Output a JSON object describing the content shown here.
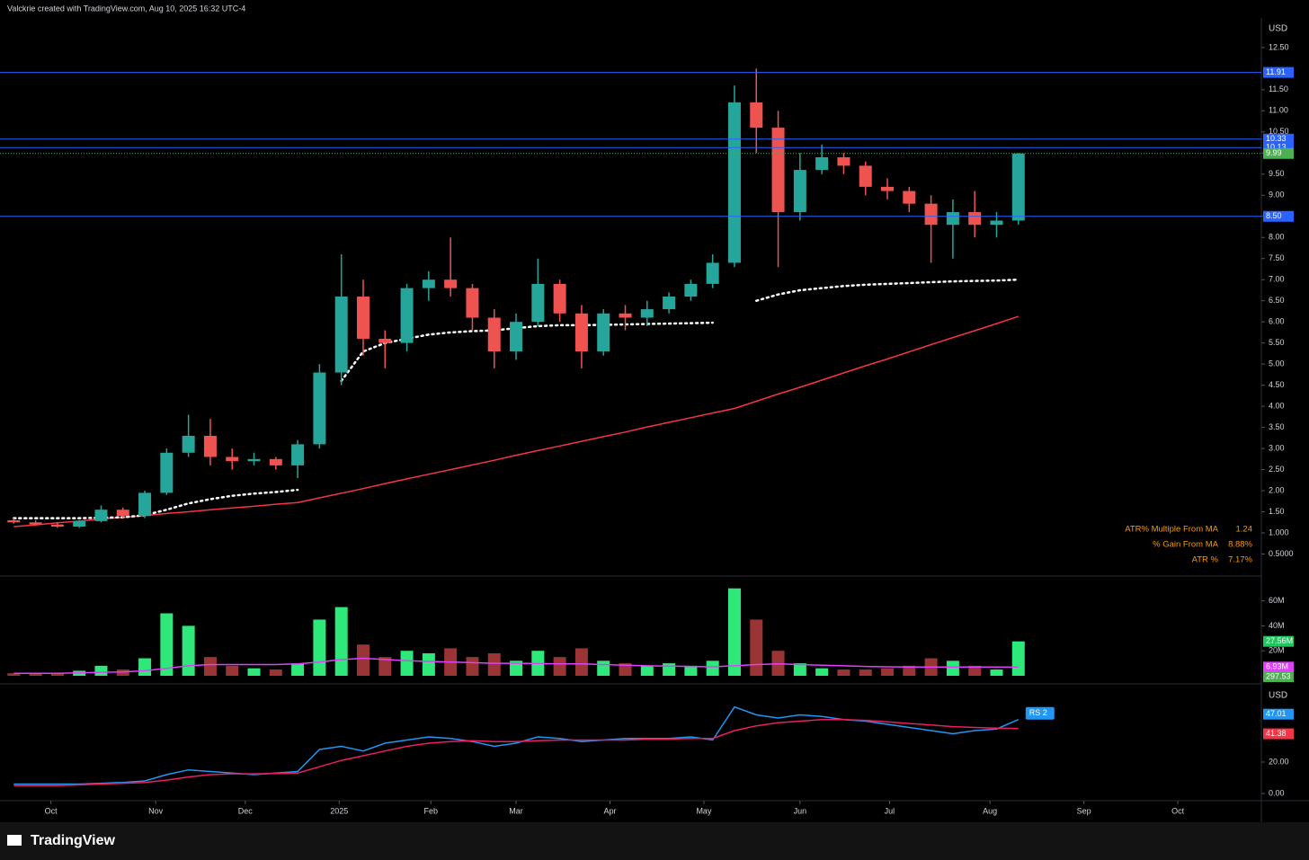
{
  "header": "Valckrie created with TradingView.com, Aug 10, 2025 16:32 UTC-4",
  "logo": "TradingView",
  "stats": [
    [
      "ATR% Multiple From MA",
      "1.24"
    ],
    [
      "% Gain From MA",
      "8.88%"
    ],
    [
      "ATR %",
      "7.17%"
    ]
  ],
  "chart_data": [
    {
      "type": "candlestick",
      "currency": "USD",
      "up_color": "#26a69a",
      "down_color": "#ef5350",
      "ylim": [
        0,
        13.2
      ],
      "yticks": [
        {
          "value": 0.5,
          "label": "0.5000"
        },
        {
          "value": 1,
          "label": "1.000"
        },
        {
          "value": 1.5,
          "label": "1.50"
        },
        {
          "value": 2,
          "label": "2.00"
        },
        {
          "value": 2.5,
          "label": "2.50"
        },
        {
          "value": 3,
          "label": "3.00"
        },
        {
          "value": 3.5,
          "label": "3.50"
        },
        {
          "value": 4,
          "label": "4.00"
        },
        {
          "value": 4.5,
          "label": "4.50"
        },
        {
          "value": 5,
          "label": "5.00"
        },
        {
          "value": 5.5,
          "label": "5.50"
        },
        {
          "value": 6,
          "label": "6.00"
        },
        {
          "value": 6.5,
          "label": "6.50"
        },
        {
          "value": 7,
          "label": "7.00"
        },
        {
          "value": 7.5,
          "label": "7.50"
        },
        {
          "value": 8,
          "label": "8.00"
        },
        {
          "value": 8.5,
          "label": "8.50"
        },
        {
          "value": 9,
          "label": "9.00"
        },
        {
          "value": 9.5,
          "label": "9.50"
        },
        {
          "value": 10,
          "label": "10.00"
        },
        {
          "value": 10.5,
          "label": "10.50"
        },
        {
          "value": 11,
          "label": "11.00"
        },
        {
          "value": 11.5,
          "label": "11.50"
        },
        {
          "value": 12.5,
          "label": "12.50"
        }
      ],
      "open": [
        1.3,
        1.25,
        1.2,
        1.15,
        1.28,
        1.55,
        1.4,
        1.95,
        2.9,
        3.3,
        2.8,
        2.7,
        2.75,
        2.6,
        3.1,
        4.8,
        6.6,
        5.6,
        5.5,
        6.8,
        7.0,
        6.8,
        6.1,
        5.3,
        6.0,
        6.9,
        6.2,
        5.3,
        6.2,
        6.1,
        6.3,
        6.6,
        6.9,
        7.4,
        11.2,
        10.6,
        8.6,
        9.6,
        9.9,
        9.7,
        9.2,
        9.1,
        8.8,
        8.3,
        8.6,
        8.3,
        8.4
      ],
      "high": [
        1.35,
        1.3,
        1.25,
        1.3,
        1.65,
        1.6,
        2.0,
        3.0,
        3.8,
        3.7,
        3.0,
        2.9,
        2.8,
        3.2,
        5.0,
        7.6,
        7.0,
        5.8,
        6.9,
        7.2,
        8.0,
        6.9,
        6.3,
        6.2,
        7.5,
        7.0,
        6.4,
        6.3,
        6.4,
        6.5,
        6.7,
        7.0,
        7.6,
        11.6,
        12.0,
        11.0,
        10.0,
        10.2,
        10.0,
        9.8,
        9.4,
        9.2,
        9.0,
        8.9,
        9.1,
        8.6,
        10.0
      ],
      "low": [
        1.22,
        1.18,
        1.12,
        1.12,
        1.25,
        1.35,
        1.35,
        1.9,
        2.8,
        2.6,
        2.5,
        2.6,
        2.5,
        2.3,
        3.0,
        4.5,
        5.2,
        4.9,
        5.3,
        6.5,
        6.6,
        5.8,
        4.9,
        5.1,
        5.9,
        6.0,
        4.9,
        5.2,
        5.8,
        5.9,
        6.2,
        6.5,
        6.8,
        7.3,
        10.0,
        7.3,
        8.4,
        9.5,
        9.5,
        9.0,
        8.9,
        8.6,
        7.4,
        7.5,
        8.0,
        8.0,
        8.3
      ],
      "close": [
        1.25,
        1.2,
        1.15,
        1.28,
        1.55,
        1.4,
        1.95,
        2.9,
        3.3,
        2.8,
        2.7,
        2.75,
        2.6,
        3.1,
        4.8,
        6.6,
        5.6,
        5.5,
        6.8,
        7.0,
        6.8,
        6.1,
        5.3,
        6.0,
        6.9,
        6.2,
        5.3,
        6.2,
        6.1,
        6.3,
        6.6,
        6.9,
        7.4,
        11.2,
        10.6,
        8.6,
        9.6,
        9.9,
        9.7,
        9.2,
        9.1,
        8.8,
        8.3,
        8.6,
        8.3,
        8.4,
        9.99
      ],
      "lines": [
        {
          "color": "#f23645",
          "style": "solid",
          "values": [
            1.15,
            1.19,
            1.24,
            1.28,
            1.33,
            1.37,
            1.41,
            1.46,
            1.5,
            1.55,
            1.59,
            1.63,
            1.68,
            1.72,
            1.83,
            1.94,
            2.05,
            2.17,
            2.28,
            2.39,
            2.5,
            2.61,
            2.72,
            2.84,
            2.95,
            3.06,
            3.17,
            3.28,
            3.39,
            3.51,
            3.62,
            3.73,
            3.84,
            3.95,
            4.12,
            4.29,
            4.45,
            4.62,
            4.79,
            4.96,
            5.12,
            5.29,
            5.46,
            5.63,
            5.79,
            5.96,
            6.13
          ]
        },
        {
          "color": "#ffffff",
          "style": "dotted",
          "values": [
            1.35,
            1.35,
            1.35,
            1.35,
            1.36,
            1.37,
            1.42,
            1.55,
            1.7,
            1.8,
            1.88,
            1.93,
            1.97,
            2.02,
            null,
            4.6,
            5.3,
            5.5,
            5.6,
            5.7,
            5.75,
            5.78,
            5.8,
            5.85,
            5.9,
            5.92,
            5.92,
            5.93,
            5.94,
            5.95,
            5.96,
            5.97,
            5.98,
            null,
            6.5,
            6.65,
            6.75,
            6.8,
            6.85,
            6.88,
            6.9,
            6.92,
            6.94,
            6.96,
            6.97,
            6.98,
            7.0
          ]
        }
      ],
      "hlines": [
        {
          "value": 11.91,
          "color": "#2962ff"
        },
        {
          "value": 10.33,
          "color": "#2962ff"
        },
        {
          "value": 10.13,
          "color": "#2962ff"
        },
        {
          "value": 9.99,
          "color": "#4caf50",
          "style": "dotted"
        },
        {
          "value": 8.5,
          "label": "8.50",
          "color": "#2962ff"
        }
      ]
    },
    {
      "type": "bar",
      "up_color": "#2ee87a",
      "down_color": "#9b3434",
      "ylim": [
        0,
        77
      ],
      "yticks": [
        {
          "value": 20,
          "label": "20M"
        },
        {
          "value": 40,
          "label": "40M"
        },
        {
          "value": 60,
          "label": "60M"
        }
      ],
      "values": [
        2,
        1.5,
        2,
        4,
        8,
        5,
        14,
        50,
        40,
        15,
        8,
        6,
        5,
        10,
        45,
        55,
        25,
        15,
        20,
        18,
        22,
        15,
        18,
        12,
        20,
        15,
        22,
        12,
        10,
        8,
        10,
        8,
        12,
        70,
        45,
        20,
        10,
        6,
        5,
        5,
        6,
        8,
        14,
        12,
        8,
        5,
        27.56
      ],
      "ma": {
        "color": "#e040fb",
        "values": [
          2,
          2,
          2,
          2.3,
          2.8,
          3,
          4,
          6,
          8,
          9,
          9,
          9,
          9,
          9.5,
          11,
          13,
          14,
          13,
          12,
          11.5,
          11,
          10.5,
          10,
          10,
          9.8,
          9.5,
          9.5,
          9,
          8.5,
          8,
          7.8,
          7.5,
          7.2,
          8,
          9,
          9.5,
          9,
          8.5,
          8,
          7.5,
          7.2,
          7,
          7,
          7,
          7,
          6.95,
          6.93
        ]
      },
      "badges": [
        {
          "value": 27.56,
          "label": "27.56M",
          "color": "#22c55e"
        },
        {
          "value": 6.93,
          "label": "6.93M",
          "color": "#e040fb"
        }
      ],
      "extra_badge": {
        "label": "297.53",
        "color": "#4caf50"
      }
    },
    {
      "type": "line",
      "currency": "USD",
      "legend_label": "RS 2",
      "ylim": [
        -4,
        67.4
      ],
      "yticks": [
        {
          "value": 0,
          "label": "0.00"
        },
        {
          "value": 20,
          "label": "20.00"
        }
      ],
      "xlim": [
        -0.3,
        57
      ],
      "xticks": [
        {
          "value": 1.7,
          "label": "Oct"
        },
        {
          "value": 6.5,
          "label": "Nov"
        },
        {
          "value": 10.6,
          "label": "Dec"
        },
        {
          "value": 14.9,
          "label": "2025"
        },
        {
          "value": 19.1,
          "label": "Feb"
        },
        {
          "value": 23,
          "label": "Mar"
        },
        {
          "value": 27.3,
          "label": "Apr"
        },
        {
          "value": 31.6,
          "label": "May"
        },
        {
          "value": 36,
          "label": "Jun"
        },
        {
          "value": 40.1,
          "label": "Jul"
        },
        {
          "value": 44.7,
          "label": "Aug"
        },
        {
          "value": 49,
          "label": "Sep"
        },
        {
          "value": 53.3,
          "label": "Oct"
        }
      ],
      "series": [
        {
          "color": "#2196f3",
          "values": [
            6,
            6,
            6,
            6,
            6.5,
            7,
            8,
            12,
            15,
            14,
            13,
            12,
            13,
            14,
            28,
            30,
            27,
            32,
            34,
            36,
            35,
            33,
            30,
            32,
            36,
            35,
            33,
            34,
            35,
            35,
            35,
            36,
            34,
            55,
            50,
            48,
            50,
            49,
            47,
            46,
            44,
            42,
            40,
            38,
            40,
            41,
            47.01
          ]
        },
        {
          "color": "#e91e63",
          "values": [
            5,
            5,
            5,
            5.5,
            6,
            6.5,
            7,
            8.5,
            10.5,
            12,
            12.5,
            12.5,
            12.7,
            13,
            17,
            21,
            24,
            27,
            30,
            32,
            33,
            33.5,
            33,
            33,
            33.5,
            34,
            34,
            34,
            34,
            34.5,
            34.5,
            35,
            35,
            40,
            43,
            45,
            46,
            47,
            47,
            46.5,
            45.5,
            44.5,
            43.5,
            42.5,
            42,
            41.5,
            41.38
          ]
        }
      ],
      "badges": [
        {
          "value": 47.01,
          "color": "#2196f3"
        },
        {
          "value": 41.38,
          "color": "#f23645"
        }
      ]
    }
  ]
}
